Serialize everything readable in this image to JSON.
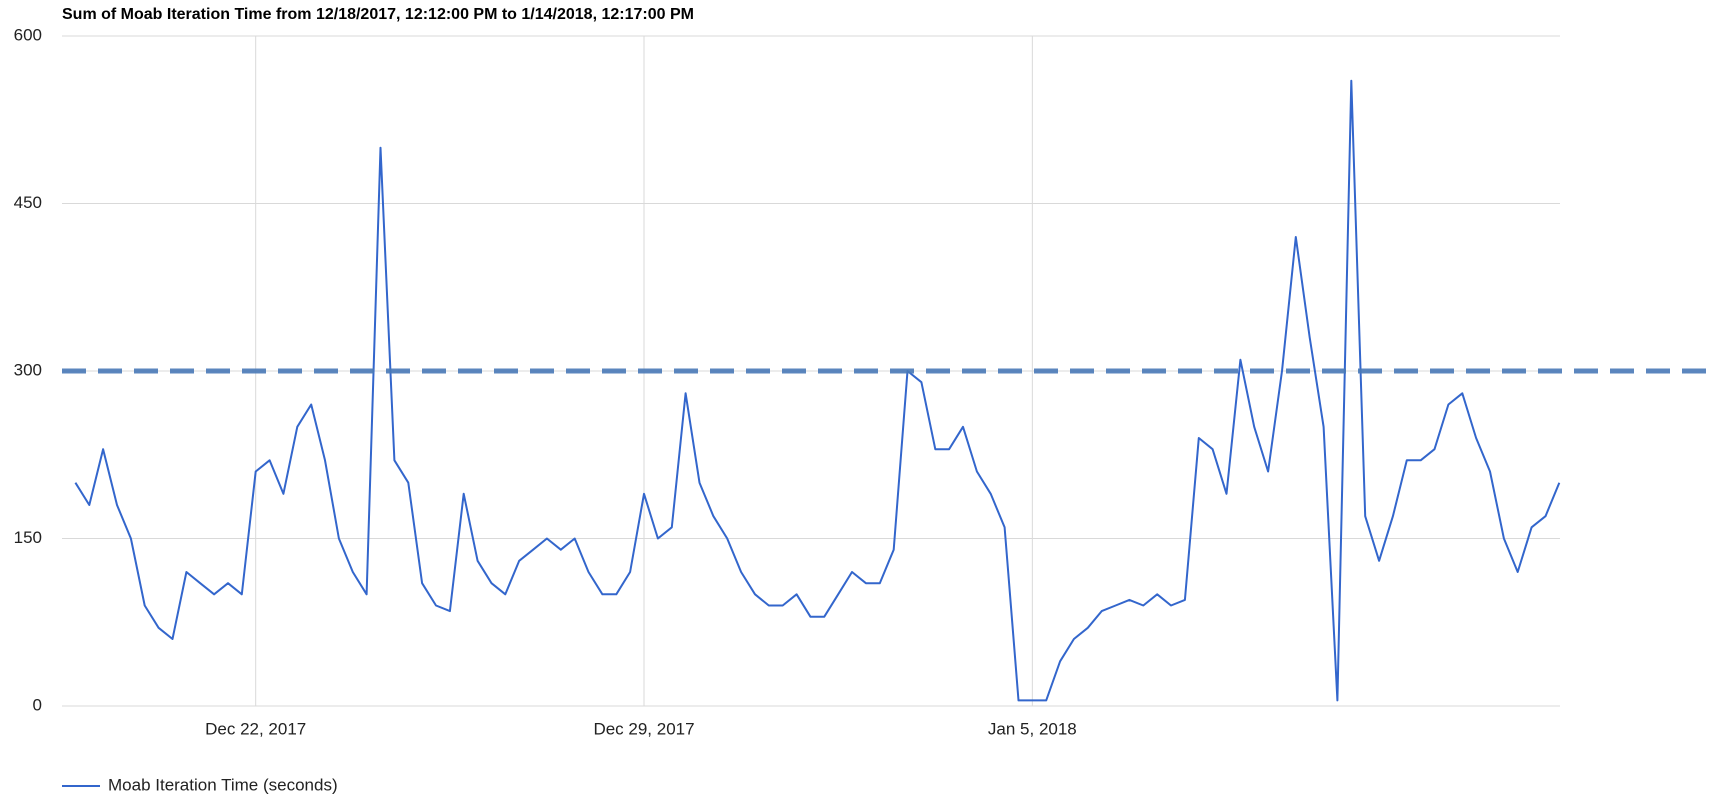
{
  "chart_data": {
    "type": "line",
    "title": "Sum of Moab Iteration Time from 12/18/2017, 12:12:00 PM to 1/14/2018, 12:17:00 PM",
    "xlim": [
      "2017-12-18 12:12",
      "2018-01-14 12:17"
    ],
    "xticks": [
      {
        "value": "2017-12-22 00:00",
        "label": "Dec 22, 2017"
      },
      {
        "value": "2017-12-29 00:00",
        "label": "Dec 29, 2017"
      },
      {
        "value": "2018-01-05 00:00",
        "label": "Jan 5, 2018"
      }
    ],
    "ylim": [
      0,
      600
    ],
    "yticks": [
      0,
      150,
      300,
      450,
      600
    ],
    "grid": true,
    "legend": "bottom-left",
    "threshold": 300,
    "threshold_color": "#4a7ab8",
    "x": [
      "2017-12-18 18:00",
      "2017-12-19 00:00",
      "2017-12-19 06:00",
      "2017-12-19 12:00",
      "2017-12-19 18:00",
      "2017-12-20 00:00",
      "2017-12-20 06:00",
      "2017-12-20 12:00",
      "2017-12-20 18:00",
      "2017-12-21 00:00",
      "2017-12-21 06:00",
      "2017-12-21 12:00",
      "2017-12-21 18:00",
      "2017-12-22 00:00",
      "2017-12-22 06:00",
      "2017-12-22 12:00",
      "2017-12-22 18:00",
      "2017-12-23 00:00",
      "2017-12-23 06:00",
      "2017-12-23 12:00",
      "2017-12-23 18:00",
      "2017-12-24 00:00",
      "2017-12-24 06:00",
      "2017-12-24 12:00",
      "2017-12-24 18:00",
      "2017-12-25 00:00",
      "2017-12-25 06:00",
      "2017-12-25 12:00",
      "2017-12-25 18:00",
      "2017-12-26 00:00",
      "2017-12-26 06:00",
      "2017-12-26 12:00",
      "2017-12-26 18:00",
      "2017-12-27 00:00",
      "2017-12-27 06:00",
      "2017-12-27 12:00",
      "2017-12-27 18:00",
      "2017-12-28 00:00",
      "2017-12-28 06:00",
      "2017-12-28 12:00",
      "2017-12-28 18:00",
      "2017-12-29 00:00",
      "2017-12-29 06:00",
      "2017-12-29 12:00",
      "2017-12-29 18:00",
      "2017-12-30 00:00",
      "2017-12-30 06:00",
      "2017-12-30 12:00",
      "2017-12-30 18:00",
      "2017-12-31 00:00",
      "2017-12-31 06:00",
      "2017-12-31 12:00",
      "2017-12-31 18:00",
      "2018-01-01 00:00",
      "2018-01-01 06:00",
      "2018-01-01 12:00",
      "2018-01-01 18:00",
      "2018-01-02 00:00",
      "2018-01-02 06:00",
      "2018-01-02 12:00",
      "2018-01-02 18:00",
      "2018-01-03 00:00",
      "2018-01-03 06:00",
      "2018-01-03 12:00",
      "2018-01-03 18:00",
      "2018-01-04 00:00",
      "2018-01-04 06:00",
      "2018-01-04 12:00",
      "2018-01-04 18:00",
      "2018-01-05 00:00",
      "2018-01-05 06:00",
      "2018-01-05 12:00",
      "2018-01-05 18:00",
      "2018-01-06 00:00",
      "2018-01-06 06:00",
      "2018-01-06 12:00",
      "2018-01-06 18:00",
      "2018-01-07 00:00",
      "2018-01-07 06:00",
      "2018-01-07 12:00",
      "2018-01-07 18:00",
      "2018-01-08 00:00",
      "2018-01-08 06:00",
      "2018-01-08 12:00",
      "2018-01-08 18:00",
      "2018-01-09 00:00",
      "2018-01-09 06:00",
      "2018-01-09 12:00",
      "2018-01-09 18:00",
      "2018-01-10 00:00",
      "2018-01-10 06:00",
      "2018-01-10 12:00",
      "2018-01-10 18:00",
      "2018-01-11 00:00",
      "2018-01-11 06:00",
      "2018-01-11 12:00",
      "2018-01-11 18:00",
      "2018-01-12 00:00",
      "2018-01-12 06:00",
      "2018-01-12 12:00",
      "2018-01-12 18:00",
      "2018-01-13 00:00",
      "2018-01-13 06:00",
      "2018-01-13 12:00",
      "2018-01-13 18:00",
      "2018-01-14 00:00",
      "2018-01-14 06:00",
      "2018-01-14 12:00"
    ],
    "series": [
      {
        "name": "Moab Iteration Time (seconds)",
        "color": "#3366cc",
        "values": [
          200,
          180,
          230,
          180,
          150,
          90,
          70,
          60,
          120,
          110,
          100,
          110,
          100,
          210,
          220,
          190,
          250,
          270,
          220,
          150,
          120,
          100,
          500,
          220,
          200,
          110,
          90,
          85,
          190,
          130,
          110,
          100,
          130,
          140,
          150,
          140,
          150,
          120,
          100,
          100,
          120,
          190,
          150,
          160,
          280,
          200,
          170,
          150,
          120,
          100,
          90,
          90,
          100,
          80,
          80,
          100,
          120,
          110,
          110,
          140,
          300,
          290,
          230,
          230,
          250,
          210,
          190,
          160,
          5,
          5,
          5,
          40,
          60,
          70,
          85,
          90,
          95,
          90,
          100,
          90,
          95,
          240,
          230,
          190,
          310,
          250,
          210,
          300,
          420,
          330,
          250,
          5,
          560,
          170,
          130,
          170,
          220,
          220,
          230,
          270,
          280,
          240,
          210,
          150,
          120,
          160,
          170,
          200
        ]
      }
    ]
  }
}
